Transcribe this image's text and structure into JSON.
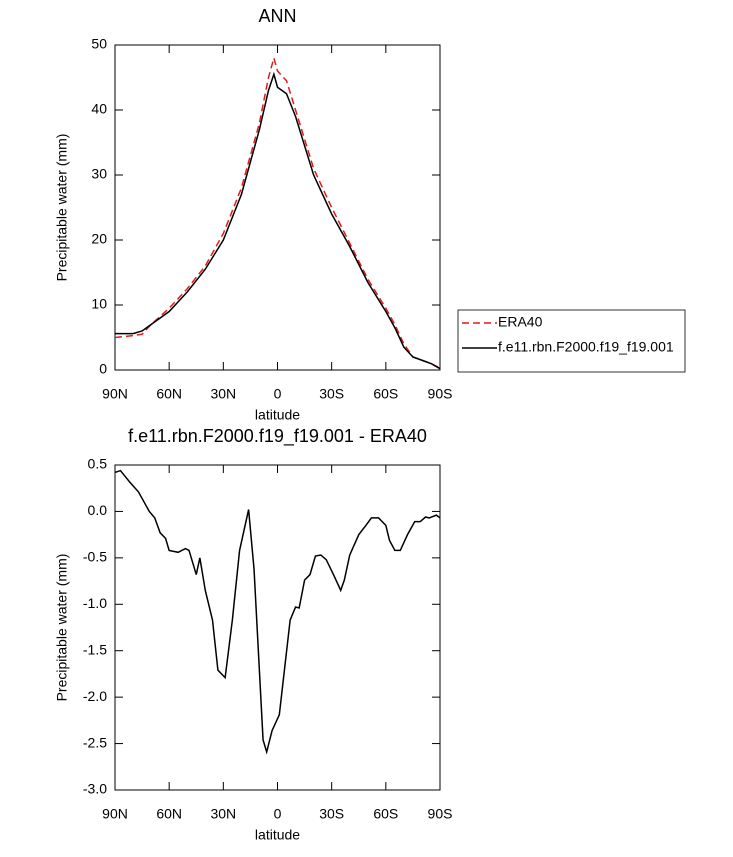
{
  "chart_data": [
    {
      "type": "line",
      "title": "ANN",
      "xlabel": "latitude",
      "ylabel": "Precipitable water (mm)",
      "xlim": [
        90,
        -90
      ],
      "xticks": [
        {
          "value": 90,
          "label": "90N"
        },
        {
          "value": 60,
          "label": "60N"
        },
        {
          "value": 30,
          "label": "30N"
        },
        0,
        {
          "value": -30,
          "label": "30S"
        },
        {
          "value": -60,
          "label": "60S"
        },
        {
          "value": -90,
          "label": "90S"
        }
      ],
      "ylim": [
        0,
        50
      ],
      "yticks": [
        0,
        10,
        20,
        30,
        40,
        50
      ],
      "legend": "outside-right",
      "x": [
        90,
        80,
        75,
        70,
        60,
        50,
        40,
        30,
        20,
        10,
        5,
        2,
        0,
        -5,
        -10,
        -20,
        -30,
        -40,
        -50,
        -60,
        -65,
        -70,
        -75,
        -80,
        -85,
        -90
      ],
      "series": [
        {
          "name": "ERA40",
          "color": "#e41a1c",
          "dash": true,
          "values": [
            5.0,
            5.3,
            5.5,
            7,
            9.5,
            12.5,
            16,
            21,
            28,
            38,
            45,
            48,
            46,
            44.5,
            40,
            31,
            25,
            19.5,
            14,
            9.5,
            7,
            4,
            2,
            1.5,
            1,
            0.3
          ]
        },
        {
          "name": "f.e11.rbn.F2000.f19_f19.001",
          "color": "#000000",
          "dash": false,
          "values": [
            5.6,
            5.6,
            6,
            7,
            9,
            12,
            15.5,
            20,
            27,
            37,
            43,
            45.5,
            43.5,
            42.5,
            39,
            30,
            24,
            19,
            13.5,
            9,
            6.5,
            3.5,
            2,
            1.5,
            1,
            0.2
          ]
        }
      ]
    },
    {
      "type": "line",
      "title": "f.e11.rbn.F2000.f19_f19.001 - ERA40",
      "xlabel": "latitude",
      "ylabel": "Precipitable water (mm)",
      "xlim": [
        90,
        -90
      ],
      "xticks": [
        {
          "value": 90,
          "label": "90N"
        },
        {
          "value": 60,
          "label": "60N"
        },
        {
          "value": 30,
          "label": "30N"
        },
        0,
        {
          "value": -30,
          "label": "30S"
        },
        {
          "value": -60,
          "label": "60S"
        },
        {
          "value": -90,
          "label": "90S"
        }
      ],
      "ylim": [
        -3.0,
        0.5
      ],
      "yticks": [
        0.5,
        {
          "value": 0,
          "label": "0.0"
        },
        -0.5,
        {
          "value": -1,
          "label": "-1.0"
        },
        -1.5,
        {
          "value": -2,
          "label": "-2.0"
        },
        -2.5,
        {
          "value": -3,
          "label": "-3.0"
        }
      ],
      "color": "#000000",
      "x": [
        90,
        87,
        82,
        77,
        73,
        71,
        68,
        65,
        62,
        60,
        55,
        51,
        49,
        45,
        43,
        40,
        36,
        33,
        29,
        25,
        21,
        16,
        13,
        8,
        6,
        3,
        -1,
        -7,
        -10,
        -12,
        -15,
        -18,
        -21,
        -24,
        -27,
        -31,
        -35,
        -37,
        -40,
        -45,
        -49,
        -52,
        -56,
        -60,
        -62,
        -65,
        -68,
        -72,
        -76,
        -79,
        -82,
        -84,
        -88,
        -90
      ],
      "values": [
        0.42,
        0.44,
        0.32,
        0.21,
        0.07,
        0.0,
        -0.07,
        -0.23,
        -0.29,
        -0.42,
        -0.44,
        -0.4,
        -0.42,
        -0.68,
        -0.5,
        -0.85,
        -1.17,
        -1.71,
        -1.79,
        -1.17,
        -0.42,
        0.02,
        -0.62,
        -2.46,
        -2.59,
        -2.36,
        -2.19,
        -1.17,
        -1.03,
        -1.04,
        -0.74,
        -0.68,
        -0.48,
        -0.47,
        -0.52,
        -0.68,
        -0.85,
        -0.74,
        -0.47,
        -0.25,
        -0.15,
        -0.07,
        -0.07,
        -0.15,
        -0.31,
        -0.42,
        -0.42,
        -0.25,
        -0.11,
        -0.11,
        -0.06,
        -0.07,
        -0.04,
        -0.07
      ]
    }
  ]
}
